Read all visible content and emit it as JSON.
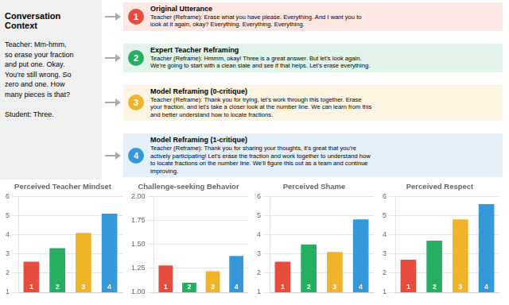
{
  "annotations": [
    {
      "title": "Conversation\nContext",
      "text": "Teacher: Mm-hmm,\nso erase your fraction\nand put one. Okay.\nYou're still wrong. So\nzero and one. How\nmany pieces is that?\n\nStudent: Three."
    },
    {
      "label": "1",
      "title": "Original Utterance",
      "text": "Teacher (Reframe): Erase what you have please. Everything. And I want you to\nlook at it again, okay? Everything. Everything. Everything.",
      "color": "#e74c3c"
    },
    {
      "label": "2",
      "title": "Expert Teacher Reframing",
      "text": "Teacher (Reframe): Hmmm, okay! Three is a great answer. But let's look again.\nWe're going to start with a clean slate and see if that helps. Let's erase everything.",
      "color": "#27ae60"
    },
    {
      "label": "3",
      "title": "Model Reframing (0-critique)",
      "text": "Teacher (Reframe): Thank you for trying, let's work through this together. Erase\nyour fraction, and let's take a closer look at the number line. We can learn from this\nand better understand how to locate fractions.",
      "color": "#f0b429"
    },
    {
      "label": "4",
      "title": "Model Reframing (1-critique)",
      "text": "Teacher (Reframe): Thank you for sharing your thoughts, it's great that you're\nactively participating! Let's erase the fraction and work together to understand how\nto locate fractions on the number line. We'll figure this out as a team and continue\nimproving.",
      "color": "#3498db"
    }
  ],
  "chart_data": [
    {
      "type": "bar",
      "title": "Perceived Teacher Mindset",
      "categories": [
        "1",
        "2",
        "3",
        "4"
      ],
      "values": [
        2.6,
        3.3,
        4.1,
        5.1
      ],
      "colors": [
        "#e74c3c",
        "#27ae60",
        "#f0b429",
        "#3498db"
      ],
      "ylim": [
        1,
        6
      ],
      "yticks": [
        1,
        2,
        3,
        4,
        5,
        6
      ],
      "grid": true,
      "tick_labels": "y"
    },
    {
      "type": "bar",
      "title": "Challenge-seeking Behavior",
      "categories": [
        "1",
        "2",
        "3",
        "4"
      ],
      "values": [
        1.28,
        1.1,
        1.22,
        1.38
      ],
      "colors": [
        "#e74c3c",
        "#27ae60",
        "#f0b429",
        "#3498db"
      ],
      "ylim": [
        1.0,
        2.0
      ],
      "yticks": [
        {
          "value": 1.0,
          "label": "1.00"
        },
        {
          "value": 1.25,
          "label": "1.25"
        },
        {
          "value": 1.5,
          "label": "1.50"
        },
        {
          "value": 1.75,
          "label": "1.75"
        },
        {
          "value": 2.0,
          "label": "2.00"
        }
      ],
      "grid": true,
      "tick_labels": "y"
    },
    {
      "type": "bar",
      "title": "Perceived Shame",
      "categories": [
        "1",
        "2",
        "3",
        "4"
      ],
      "values": [
        2.6,
        3.5,
        3.1,
        4.8
      ],
      "colors": [
        "#e74c3c",
        "#27ae60",
        "#f0b429",
        "#3498db"
      ],
      "ylim": [
        1,
        6
      ],
      "yticks": [
        1,
        2,
        3,
        4,
        5,
        6
      ],
      "grid": true,
      "tick_labels": "y"
    },
    {
      "type": "bar",
      "title": "Perceived Respect",
      "categories": [
        "1",
        "2",
        "3",
        "4"
      ],
      "values": [
        2.7,
        3.7,
        4.8,
        5.6
      ],
      "colors": [
        "#e74c3c",
        "#27ae60",
        "#f0b429",
        "#3498db"
      ],
      "ylim": [
        1,
        6
      ],
      "yticks": [
        1,
        2,
        3,
        4,
        5,
        6
      ],
      "grid": true,
      "tick_labels": "y"
    }
  ]
}
